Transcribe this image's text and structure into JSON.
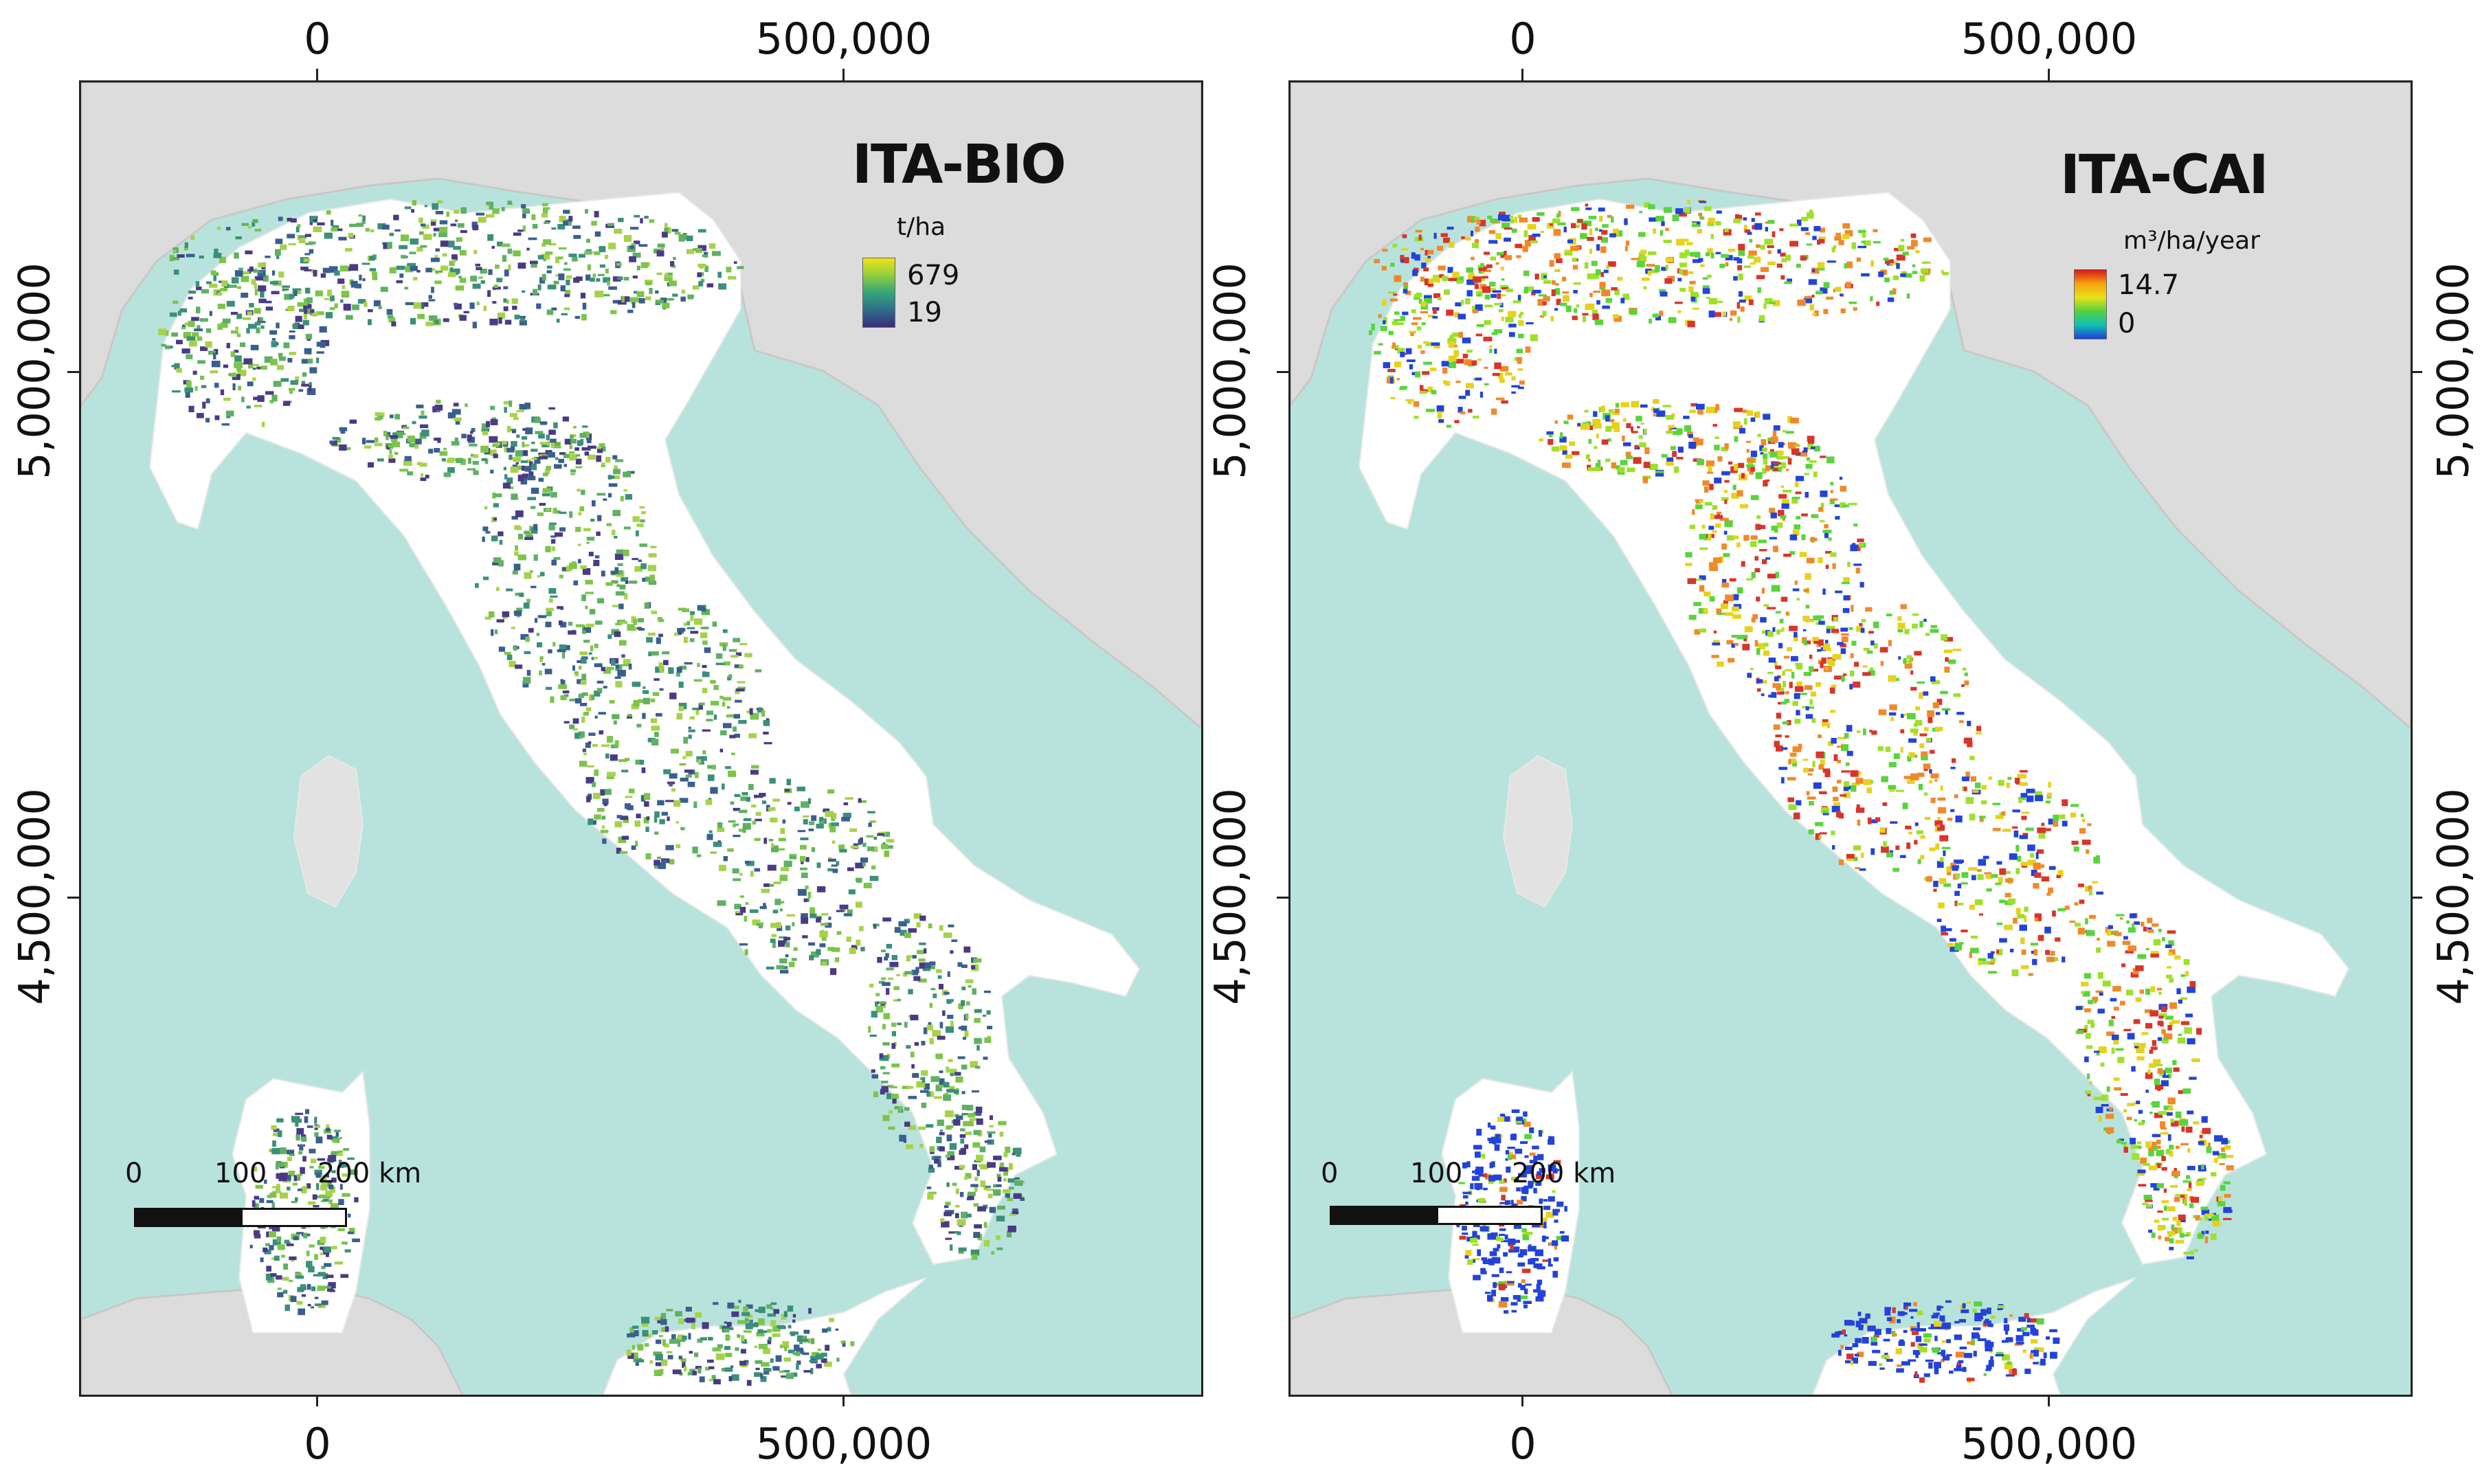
{
  "panels": [
    {
      "title": "ITA-BIO",
      "unit": "t/ha",
      "max": "679",
      "min": "19",
      "ramp_colors": [
        "#f0e31c",
        "#8fce3c",
        "#35a57a",
        "#2e6e8a",
        "#3b2a7a"
      ],
      "forest_colors": [
        "#5fb063",
        "#7dc44a",
        "#3c8f7a",
        "#3a5f8f",
        "#4a3a86",
        "#a6d24a"
      ]
    },
    {
      "title": "ITA-CAI",
      "unit": "m³/ha/year",
      "max": "14.7",
      "min": "0",
      "ramp_colors": [
        "#d7191c",
        "#f6a30c",
        "#e8e11b",
        "#53d13f",
        "#10c1b5",
        "#1f3fd6"
      ],
      "forest_colors": [
        "#5ad43c",
        "#9ee02a",
        "#e6d21c",
        "#f0892a",
        "#d8352a",
        "#2343d8"
      ]
    }
  ],
  "axis": {
    "x_ticks": [
      "0",
      "500,000"
    ],
    "y_ticks": [
      "5,000,000",
      "4,500,000"
    ]
  },
  "scalebar": {
    "labels": [
      "0",
      "100",
      "200 km"
    ]
  },
  "colors": {
    "sea": "#b8e3dc",
    "land": "#ffffff",
    "relief": "#d6d6d6"
  }
}
